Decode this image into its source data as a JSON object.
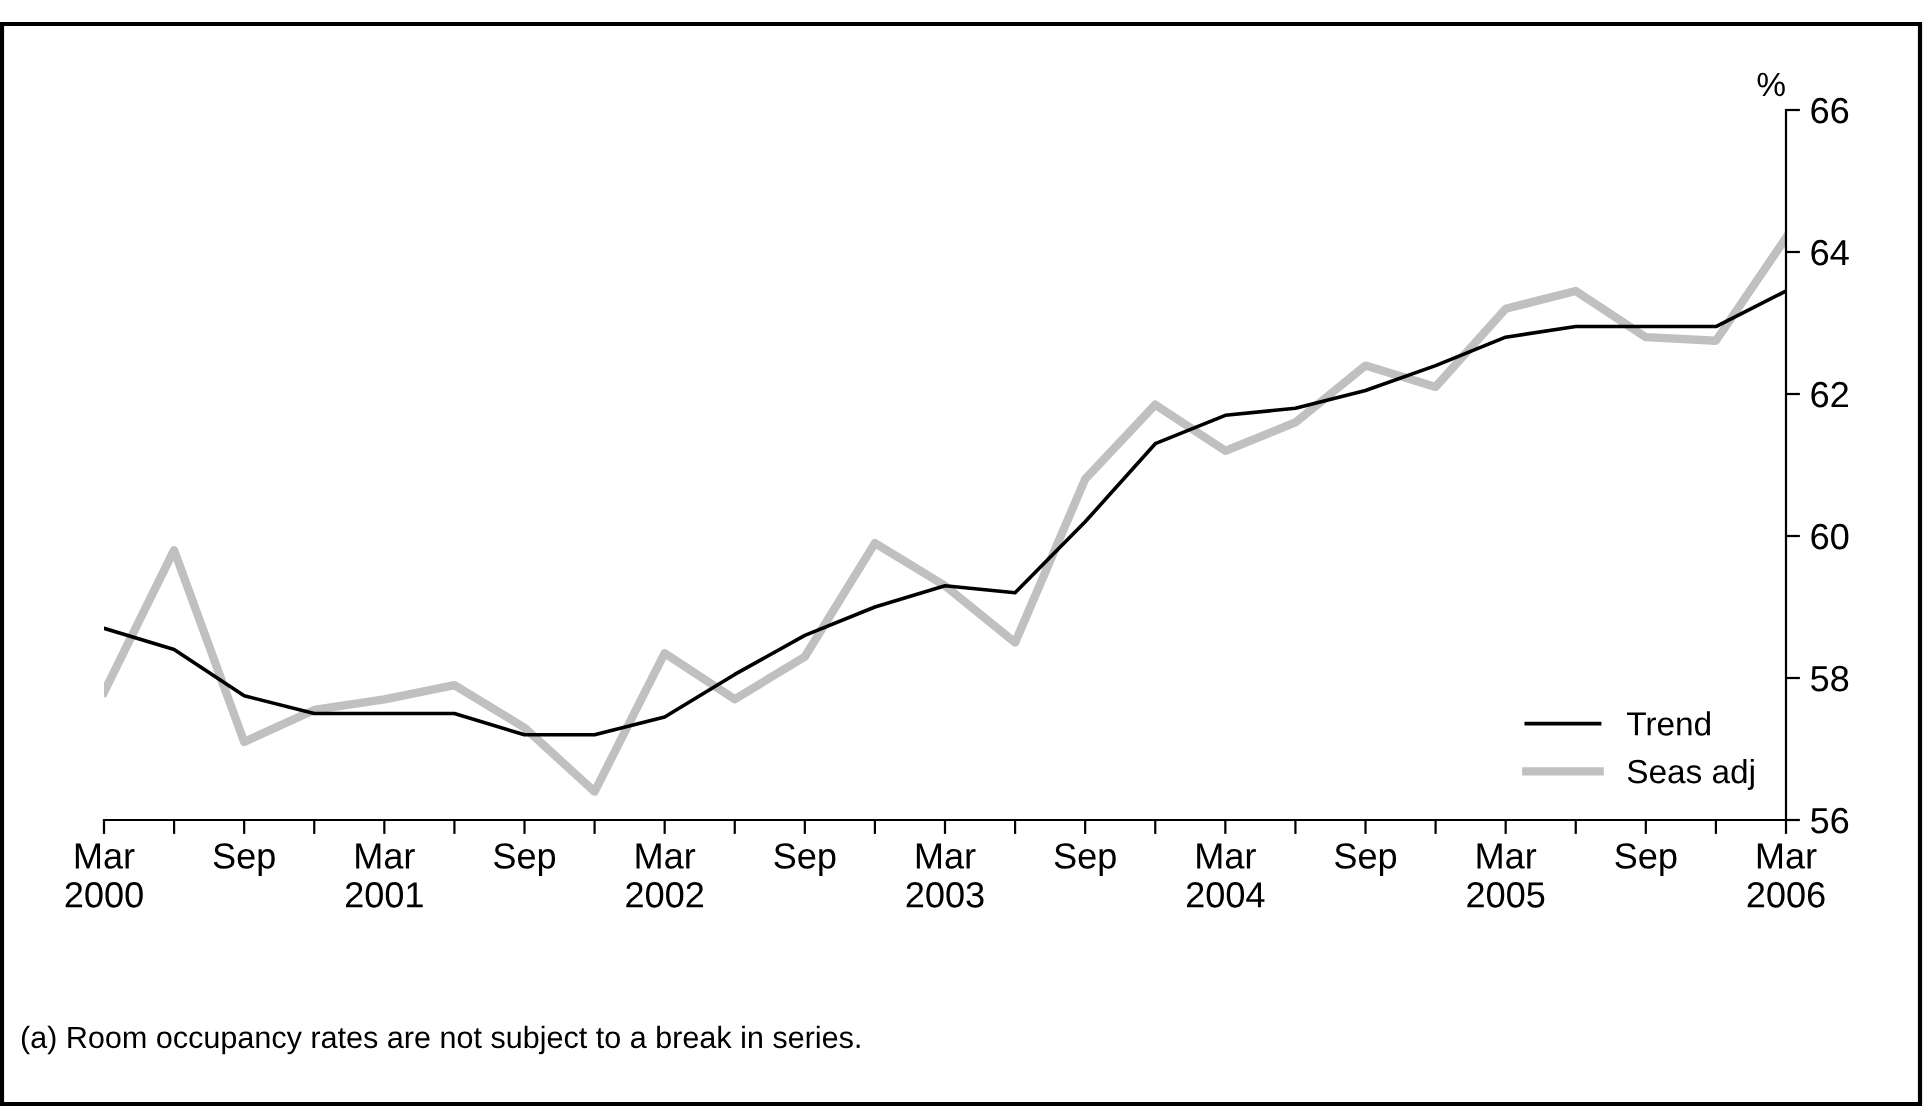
{
  "chart_data": {
    "type": "line",
    "ylabel": "%",
    "categories": [
      "Mar\n2000",
      null,
      "Sep",
      null,
      "Mar\n2001",
      null,
      "Sep",
      null,
      "Mar\n2002",
      null,
      "Sep",
      null,
      "Mar\n2003",
      null,
      "Sep",
      null,
      "Mar\n2004",
      null,
      "Sep",
      null,
      "Mar\n2005",
      null,
      "Sep",
      null,
      "Mar\n2006"
    ],
    "series": [
      {
        "name": "Trend",
        "color": "#000000",
        "values": [
          58.7,
          58.4,
          57.75,
          57.5,
          57.5,
          57.5,
          57.2,
          57.2,
          57.45,
          58.05,
          58.6,
          59.0,
          59.3,
          59.2,
          60.2,
          61.3,
          61.7,
          61.8,
          62.05,
          62.4,
          62.8,
          62.95,
          62.95,
          62.95,
          63.45
        ]
      },
      {
        "name": "Seas adj",
        "color": "#c0c0c0",
        "values": [
          57.8,
          59.8,
          57.1,
          57.55,
          57.7,
          57.9,
          57.3,
          56.4,
          58.35,
          57.7,
          58.3,
          59.9,
          59.3,
          58.5,
          60.8,
          61.85,
          61.2,
          61.6,
          62.4,
          62.1,
          63.2,
          63.45,
          62.8,
          62.75,
          64.2
        ]
      }
    ],
    "ylim": [
      56,
      66
    ],
    "yticks": [
      56,
      58,
      60,
      62,
      64,
      66
    ],
    "grid": false,
    "legend": "bottom right",
    "annotations": [
      "(a) Room occupancy rates are not subject to a break in series."
    ]
  }
}
